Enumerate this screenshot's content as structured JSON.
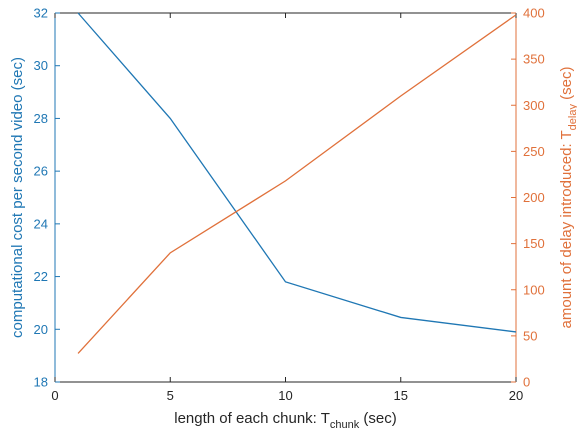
{
  "chart_data": {
    "type": "line",
    "title": "",
    "xlabel": {
      "main": "length of each chunk: T",
      "sub": "chunk",
      "suffix": " (sec)"
    },
    "ylabel_left": "computational cost per second video (sec)",
    "ylabel_right": {
      "main": "amount of delay introduced: T",
      "sub": "delay",
      "suffix": " (sec)"
    },
    "xlim": [
      0,
      20
    ],
    "ylim_left": [
      18,
      32
    ],
    "ylim_right": [
      0,
      400
    ],
    "xticks": [
      0,
      5,
      10,
      15,
      20
    ],
    "yticks_left": [
      18,
      20,
      22,
      24,
      26,
      28,
      30,
      32
    ],
    "yticks_right": [
      0,
      50,
      100,
      150,
      200,
      250,
      300,
      350,
      400
    ],
    "grid": false,
    "series": [
      {
        "axis": "left",
        "color": "#1f77b4",
        "x": [
          1,
          5,
          10,
          15,
          20
        ],
        "y": [
          32,
          28,
          21.8,
          20.45,
          19.9
        ]
      },
      {
        "axis": "right",
        "color": "#e0713b",
        "x": [
          1,
          5,
          10,
          15,
          20
        ],
        "y": [
          31,
          140,
          218,
          310,
          398
        ]
      }
    ],
    "colors": {
      "left_axis": "#1f77b4",
      "right_axis": "#e0713b",
      "x_axis": "#262626"
    }
  }
}
